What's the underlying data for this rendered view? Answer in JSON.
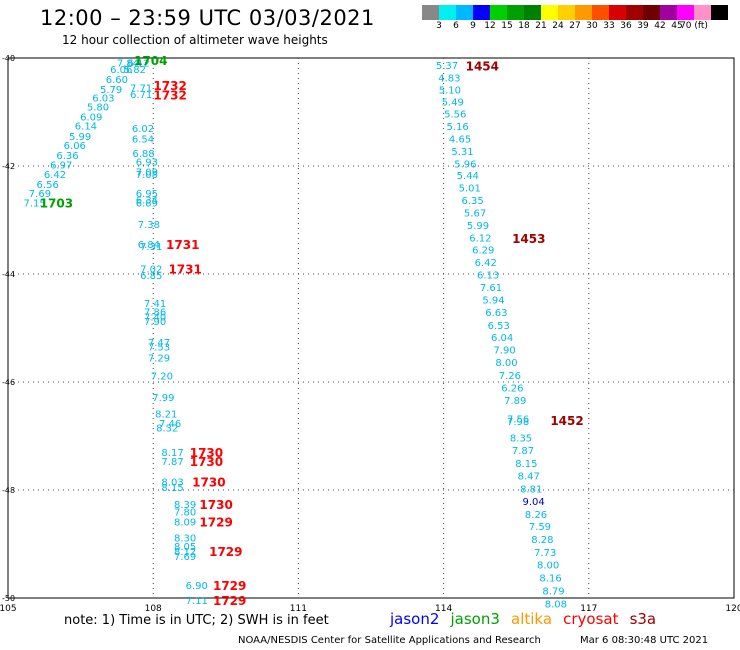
{
  "header": {
    "title": "12:00 – 23:59 UTC 03/03/2021",
    "subtitle": "12 hour collection of altimeter wave heights"
  },
  "legend": {
    "colors": [
      "#888888",
      "#00f0f0",
      "#00b8ff",
      "#0000ff",
      "#00d000",
      "#00a000",
      "#008000",
      "#ffff00",
      "#ffd000",
      "#ff9900",
      "#ff5000",
      "#d80000",
      "#a00000",
      "#700000",
      "#a000a0",
      "#ff00ff",
      "#ff90c8",
      "#000000"
    ],
    "labels": [
      "3",
      "6",
      "9",
      "12",
      "15",
      "18",
      "21",
      "24",
      "27",
      "30",
      "33",
      "36",
      "39",
      "42",
      "45",
      "70 (ft)"
    ]
  },
  "satellites": [
    {
      "name": "jason2",
      "color": "#0000ff"
    },
    {
      "name": "jason3",
      "color": "#00a000"
    },
    {
      "name": "altika",
      "color": "#ff9900"
    },
    {
      "name": "cryosat",
      "color": "#ff0000"
    },
    {
      "name": "s3a",
      "color": "#a00000"
    }
  ],
  "footer": {
    "note": "note:  1) Time is in UTC;  2) SWH is in feet",
    "credit": "NOAA/NESDIS Center for Satellite Applications and Research",
    "date": "Mar  6 08:30:48 UTC 2021"
  },
  "chart_data": {
    "type": "scatter",
    "xlim": [
      105,
      120
    ],
    "ylim": [
      -50,
      -40
    ],
    "x_ticks": [
      "105",
      "108",
      "111",
      "114",
      "117",
      "120"
    ],
    "y_ticks": [
      "-40",
      "-42",
      "-44",
      "-46",
      "-48",
      "-50"
    ],
    "grid": true,
    "swh_color": "#00b8e8",
    "series": [
      {
        "name": "jason3",
        "color": "#00a000",
        "points": [
          {
            "x": 107.48,
            "y": -40.08,
            "v": "7.84"
          },
          {
            "x": 107.7,
            "y": -40.08,
            "v": "6.12"
          },
          {
            "x": 107.34,
            "y": -40.2,
            "v": "6.06"
          },
          {
            "x": 107.62,
            "y": -40.2,
            "v": "5.82"
          },
          {
            "x": 107.25,
            "y": -40.39,
            "v": "6.60"
          },
          {
            "x": 107.13,
            "y": -40.57,
            "v": "5.79"
          },
          {
            "x": 106.97,
            "y": -40.73,
            "v": "6.03"
          },
          {
            "x": 106.86,
            "y": -40.9,
            "v": "5.80"
          },
          {
            "x": 106.72,
            "y": -41.08,
            "v": "6.09"
          },
          {
            "x": 106.61,
            "y": -41.25,
            "v": "6.14"
          },
          {
            "x": 106.49,
            "y": -41.44,
            "v": "5.99"
          },
          {
            "x": 106.38,
            "y": -41.61,
            "v": "6.06"
          },
          {
            "x": 106.23,
            "y": -41.8,
            "v": "6.36"
          },
          {
            "x": 106.1,
            "y": -41.97,
            "v": "6.97"
          },
          {
            "x": 105.97,
            "y": -42.15,
            "v": "6.42"
          },
          {
            "x": 105.82,
            "y": -42.33,
            "v": "6.56"
          },
          {
            "x": 105.66,
            "y": -42.5,
            "v": "7.69"
          },
          {
            "x": 105.55,
            "y": -42.68,
            "v": "7.15"
          }
        ],
        "time_labels": [
          {
            "x": 107.95,
            "y": -40.04,
            "t": "1704"
          },
          {
            "x": 106.0,
            "y": -42.68,
            "t": "1703"
          }
        ]
      },
      {
        "name": "cryosat",
        "color": "#ff0000",
        "points": [
          {
            "x": 107.75,
            "y": -40.55,
            "v": "7.71"
          },
          {
            "x": 107.75,
            "y": -40.67,
            "v": "6.71"
          },
          {
            "x": 107.79,
            "y": -41.3,
            "v": "6.02"
          },
          {
            "x": 107.79,
            "y": -41.49,
            "v": "6.54"
          },
          {
            "x": 107.8,
            "y": -41.76,
            "v": "6.88"
          },
          {
            "x": 107.87,
            "y": -41.92,
            "v": "6.93"
          },
          {
            "x": 107.87,
            "y": -42.1,
            "v": "7.09"
          },
          {
            "x": 107.87,
            "y": -42.15,
            "v": "7.08"
          },
          {
            "x": 107.87,
            "y": -42.5,
            "v": "6.95"
          },
          {
            "x": 107.87,
            "y": -42.62,
            "v": "6.34"
          },
          {
            "x": 107.87,
            "y": -42.68,
            "v": "6.89"
          },
          {
            "x": 107.91,
            "y": -43.07,
            "v": "7.38"
          },
          {
            "x": 107.91,
            "y": -43.44,
            "v": "6.84"
          },
          {
            "x": 107.96,
            "y": -43.48,
            "v": "7.31"
          },
          {
            "x": 107.96,
            "y": -43.9,
            "v": "7.02"
          },
          {
            "x": 107.96,
            "y": -44.02,
            "v": "6.85"
          },
          {
            "x": 108.04,
            "y": -44.54,
            "v": "7.41"
          },
          {
            "x": 108.04,
            "y": -44.69,
            "v": "7.86"
          },
          {
            "x": 108.04,
            "y": -44.79,
            "v": "7.40"
          },
          {
            "x": 108.04,
            "y": -44.87,
            "v": "7.90"
          },
          {
            "x": 108.12,
            "y": -45.26,
            "v": "7.47"
          },
          {
            "x": 108.12,
            "y": -45.34,
            "v": "7.53"
          },
          {
            "x": 108.12,
            "y": -45.55,
            "v": "7.29"
          },
          {
            "x": 108.18,
            "y": -45.88,
            "v": "7.20"
          },
          {
            "x": 108.21,
            "y": -46.28,
            "v": "7.99"
          },
          {
            "x": 108.27,
            "y": -46.58,
            "v": "8.21"
          },
          {
            "x": 108.35,
            "y": -46.76,
            "v": "7.46"
          },
          {
            "x": 108.29,
            "y": -46.84,
            "v": "8.32"
          },
          {
            "x": 108.4,
            "y": -47.3,
            "v": "8.17"
          },
          {
            "x": 108.4,
            "y": -47.46,
            "v": "7.87"
          },
          {
            "x": 108.4,
            "y": -47.84,
            "v": "8.03"
          },
          {
            "x": 108.4,
            "y": -47.94,
            "v": "8.15"
          },
          {
            "x": 108.66,
            "y": -48.26,
            "v": "8.39"
          },
          {
            "x": 108.66,
            "y": -48.4,
            "v": "7.80"
          },
          {
            "x": 108.66,
            "y": -48.58,
            "v": "8.09"
          },
          {
            "x": 108.66,
            "y": -48.88,
            "v": "8.30"
          },
          {
            "x": 108.66,
            "y": -49.04,
            "v": "8.05"
          },
          {
            "x": 108.66,
            "y": -49.13,
            "v": "8.12"
          },
          {
            "x": 108.66,
            "y": -49.22,
            "v": "7.69"
          },
          {
            "x": 108.9,
            "y": -49.76,
            "v": "6.90"
          },
          {
            "x": 108.9,
            "y": -50.04,
            "v": "7.11"
          }
        ],
        "time_labels": [
          {
            "x": 108.35,
            "y": -40.5,
            "t": "1732"
          },
          {
            "x": 108.35,
            "y": -40.68,
            "t": "1732"
          },
          {
            "x": 108.61,
            "y": -43.44,
            "t": "1731"
          },
          {
            "x": 108.66,
            "y": -43.9,
            "t": "1731"
          },
          {
            "x": 109.1,
            "y": -47.3,
            "t": "1730"
          },
          {
            "x": 109.1,
            "y": -47.46,
            "t": "1730"
          },
          {
            "x": 109.15,
            "y": -47.84,
            "t": "1730"
          },
          {
            "x": 109.3,
            "y": -48.26,
            "t": "1730"
          },
          {
            "x": 109.3,
            "y": -48.58,
            "t": "1729"
          },
          {
            "x": 109.5,
            "y": -49.13,
            "t": "1729"
          },
          {
            "x": 109.58,
            "y": -49.76,
            "t": "1729"
          },
          {
            "x": 109.58,
            "y": -50.04,
            "t": "1729"
          }
        ]
      },
      {
        "name": "s3a",
        "color": "#a00000",
        "points": [
          {
            "x": 114.07,
            "y": -40.13,
            "v": "5.37"
          },
          {
            "x": 114.12,
            "y": -40.36,
            "v": "4.83"
          },
          {
            "x": 114.13,
            "y": -40.58,
            "v": "5.10"
          },
          {
            "x": 114.19,
            "y": -40.81,
            "v": "5.49"
          },
          {
            "x": 114.24,
            "y": -41.03,
            "v": "5.56"
          },
          {
            "x": 114.29,
            "y": -41.26,
            "v": "5.16"
          },
          {
            "x": 114.34,
            "y": -41.49,
            "v": "4.65"
          },
          {
            "x": 114.39,
            "y": -41.72,
            "v": "5.31"
          },
          {
            "x": 114.45,
            "y": -41.95,
            "v": "5.96"
          },
          {
            "x": 114.5,
            "y": -42.17,
            "v": "5.44"
          },
          {
            "x": 114.54,
            "y": -42.4,
            "v": "5.01"
          },
          {
            "x": 114.6,
            "y": -42.63,
            "v": "6.35"
          },
          {
            "x": 114.65,
            "y": -42.86,
            "v": "5.67"
          },
          {
            "x": 114.71,
            "y": -43.09,
            "v": "5.99"
          },
          {
            "x": 114.76,
            "y": -43.32,
            "v": "6.12"
          },
          {
            "x": 114.82,
            "y": -43.55,
            "v": "6.29"
          },
          {
            "x": 114.87,
            "y": -43.78,
            "v": "6.42"
          },
          {
            "x": 114.92,
            "y": -44.01,
            "v": "6.13"
          },
          {
            "x": 114.98,
            "y": -44.24,
            "v": "7.61"
          },
          {
            "x": 115.03,
            "y": -44.47,
            "v": "5.94"
          },
          {
            "x": 115.09,
            "y": -44.7,
            "v": "6.63"
          },
          {
            "x": 115.14,
            "y": -44.94,
            "v": "6.53"
          },
          {
            "x": 115.21,
            "y": -45.17,
            "v": "6.04"
          },
          {
            "x": 115.26,
            "y": -45.4,
            "v": "7.90"
          },
          {
            "x": 115.3,
            "y": -45.63,
            "v": "8.00"
          },
          {
            "x": 115.37,
            "y": -45.87,
            "v": "7.26"
          },
          {
            "x": 115.42,
            "y": -46.1,
            "v": "6.26"
          },
          {
            "x": 115.48,
            "y": -46.33,
            "v": "7.89"
          },
          {
            "x": 115.54,
            "y": -46.68,
            "v": "7.56"
          },
          {
            "x": 115.54,
            "y": -46.72,
            "v": "7.98"
          },
          {
            "x": 115.6,
            "y": -47.03,
            "v": "8.35"
          },
          {
            "x": 115.64,
            "y": -47.26,
            "v": "7.87"
          },
          {
            "x": 115.71,
            "y": -47.5,
            "v": "8.15"
          },
          {
            "x": 115.76,
            "y": -47.73,
            "v": "8.47"
          },
          {
            "x": 115.81,
            "y": -47.97,
            "v": "8.81"
          },
          {
            "x": 115.86,
            "y": -48.2,
            "v": "9.04"
          },
          {
            "x": 115.91,
            "y": -48.44,
            "v": "8.26"
          },
          {
            "x": 115.99,
            "y": -48.67,
            "v": "7.59"
          },
          {
            "x": 116.04,
            "y": -48.91,
            "v": "8.28"
          },
          {
            "x": 116.1,
            "y": -49.15,
            "v": "7.73"
          },
          {
            "x": 116.16,
            "y": -49.38,
            "v": "8.00"
          },
          {
            "x": 116.21,
            "y": -49.62,
            "v": "8.16"
          },
          {
            "x": 116.27,
            "y": -49.86,
            "v": "8.79"
          },
          {
            "x": 116.32,
            "y": -50.1,
            "v": "8.08"
          }
        ],
        "time_labels": [
          {
            "x": 114.8,
            "y": -40.14,
            "t": "1454"
          },
          {
            "x": 115.76,
            "y": -43.33,
            "t": "1453"
          },
          {
            "x": 116.55,
            "y": -46.7,
            "t": "1452"
          }
        ]
      }
    ]
  }
}
